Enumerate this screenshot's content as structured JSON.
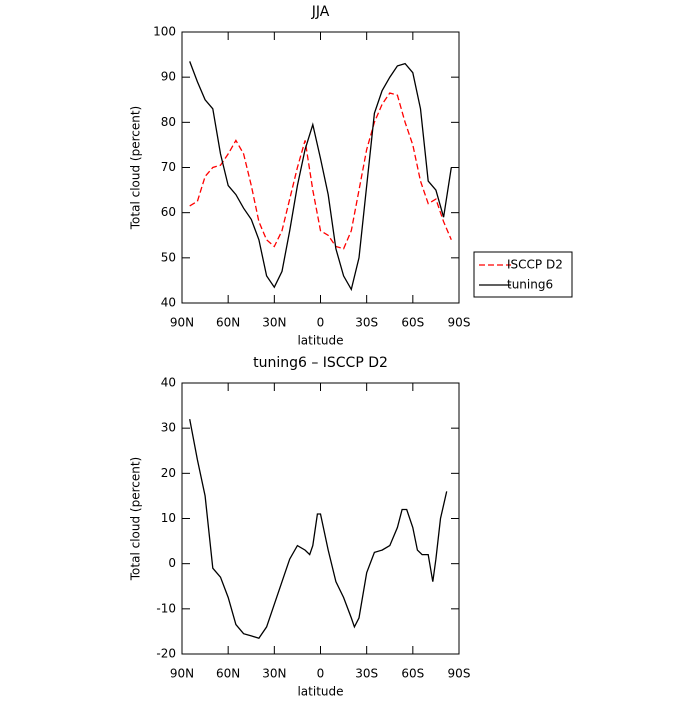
{
  "chart_data": [
    {
      "type": "line",
      "title": "JJA",
      "x_label": "latitude",
      "y_label": "Total cloud (percent)",
      "xlim": [
        90,
        -90
      ],
      "ylim": [
        40,
        100
      ],
      "xticks": [
        {
          "value": 90,
          "label": "90N"
        },
        {
          "value": 60,
          "label": "60N"
        },
        {
          "value": 30,
          "label": "30N"
        },
        0,
        {
          "value": -30,
          "label": "30S"
        },
        {
          "value": -60,
          "label": "60S"
        },
        {
          "value": -90,
          "label": "90S"
        }
      ],
      "yticks": [
        40,
        50,
        60,
        70,
        80,
        90,
        100
      ],
      "legend": "outside-right",
      "series": [
        {
          "name": "ISCCP D2",
          "color": "#ff0000",
          "dash": true,
          "x": [
            85,
            80,
            75,
            70,
            65,
            60,
            55,
            50,
            45,
            40,
            35,
            30,
            25,
            20,
            15,
            10,
            5,
            0,
            -5,
            -10,
            -15,
            -20,
            -25,
            -30,
            -35,
            -40,
            -45,
            -50,
            -55,
            -60,
            -65,
            -70,
            -75,
            -80,
            -85
          ],
          "values": [
            61.5,
            62.5,
            68,
            70,
            70.5,
            73,
            76,
            73,
            66,
            58,
            54,
            52.5,
            56,
            63,
            70,
            76,
            65,
            56,
            55,
            52.5,
            52,
            56,
            65,
            74,
            80,
            84,
            86.5,
            86,
            80,
            75,
            67,
            62,
            63,
            58,
            54
          ]
        },
        {
          "name": "tuning6",
          "color": "#000000",
          "dash": false,
          "x": [
            85,
            80,
            75,
            70,
            65,
            60,
            55,
            50,
            45,
            40,
            35,
            30,
            25,
            20,
            15,
            10,
            5,
            0,
            -5,
            -10,
            -15,
            -20,
            -25,
            -30,
            -35,
            -40,
            -45,
            -50,
            -55,
            -60,
            -65,
            -70,
            -75,
            -80,
            -85
          ],
          "values": [
            93.5,
            89,
            85,
            83,
            73,
            66,
            64,
            61,
            58.5,
            54,
            46,
            43.5,
            47,
            56,
            66,
            74,
            79.5,
            72,
            64,
            52,
            46,
            43,
            50,
            66,
            82,
            87,
            90,
            92.5,
            93,
            91,
            83,
            67,
            65,
            59,
            70
          ]
        }
      ]
    },
    {
      "type": "line",
      "title": "tuning6 – ISCCP D2",
      "x_label": "latitude",
      "y_label": "Total cloud (percent)",
      "xlim": [
        90,
        -90
      ],
      "ylim": [
        -20,
        40
      ],
      "xticks": [
        {
          "value": 90,
          "label": "90N"
        },
        {
          "value": 60,
          "label": "60N"
        },
        {
          "value": 30,
          "label": "30N"
        },
        0,
        {
          "value": -30,
          "label": "30S"
        },
        {
          "value": -60,
          "label": "60S"
        },
        {
          "value": -90,
          "label": "90S"
        }
      ],
      "yticks": [
        -20,
        -10,
        0,
        10,
        20,
        30,
        40
      ],
      "series": [
        {
          "color": "#000000",
          "dash": false,
          "x": [
            85,
            80,
            75,
            70,
            65,
            60,
            55,
            50,
            45,
            40,
            35,
            30,
            25,
            20,
            15,
            10,
            7,
            5,
            2,
            0,
            -5,
            -10,
            -15,
            -20,
            -22,
            -25,
            -30,
            -35,
            -40,
            -45,
            -50,
            -53,
            -56,
            -60,
            -63,
            -66,
            -70,
            -73,
            -75,
            -78,
            -82
          ],
          "values": [
            32,
            23,
            15,
            -1,
            -3,
            -7.5,
            -13.5,
            -15.5,
            -16,
            -16.5,
            -14,
            -9,
            -4,
            1,
            4,
            3,
            2,
            4,
            11,
            11,
            3,
            -4,
            -7.5,
            -12,
            -14,
            -12,
            -2,
            2.5,
            3,
            4,
            8,
            12,
            12,
            8,
            3,
            2,
            2,
            -4,
            1,
            10,
            16
          ]
        }
      ]
    }
  ]
}
